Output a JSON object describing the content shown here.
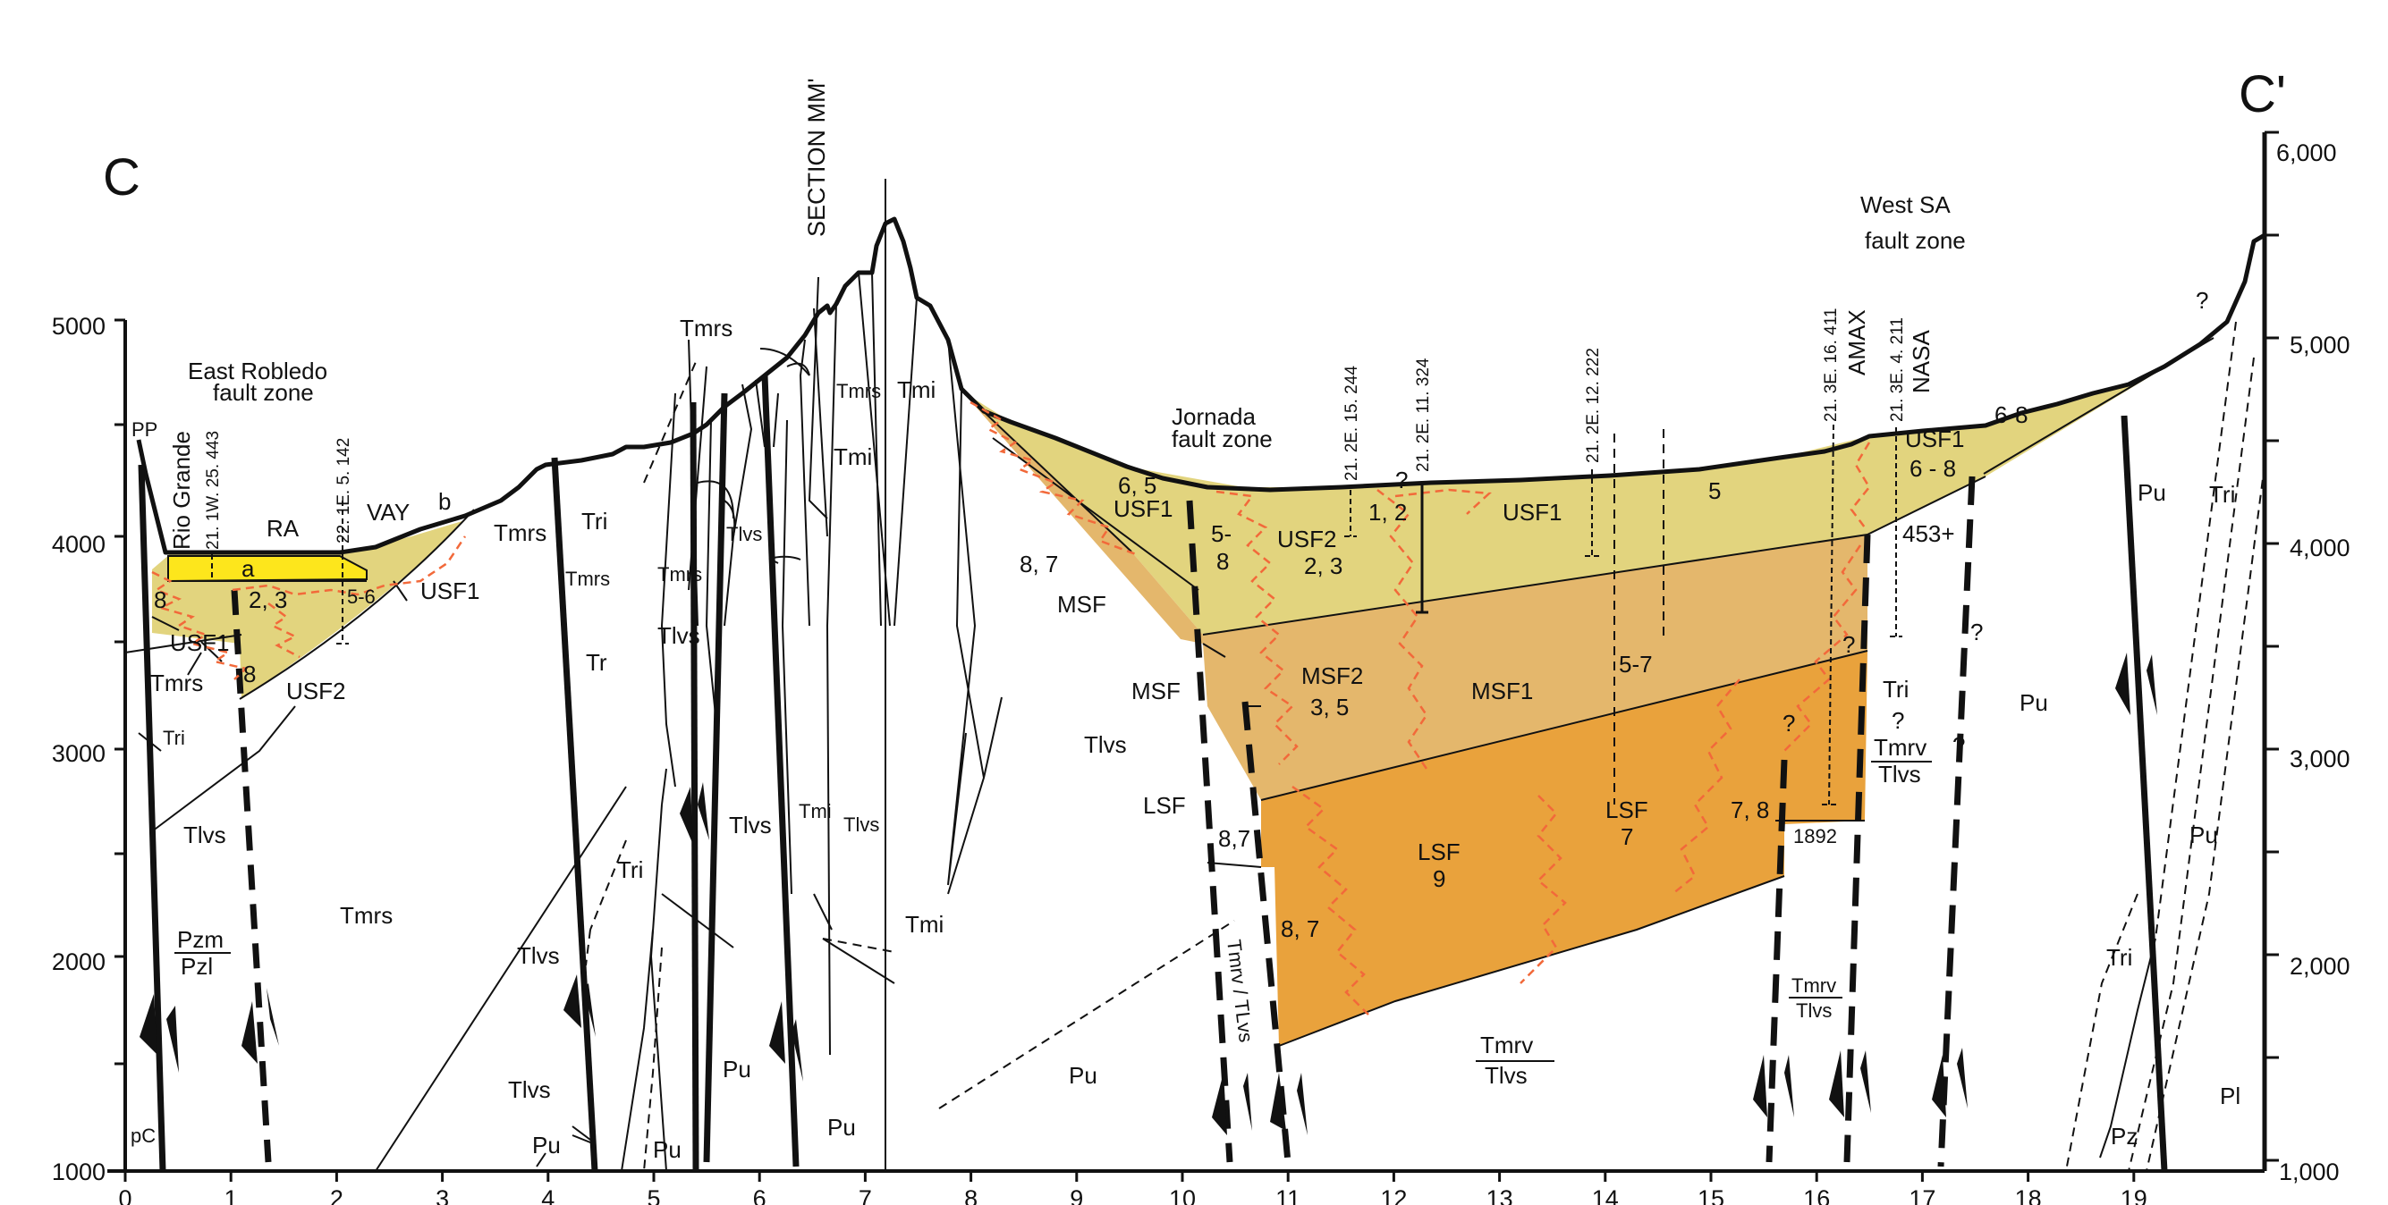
{
  "section": {
    "start_label": "C",
    "end_label": "C'",
    "crossing_section": "SECTION  MM'"
  },
  "axes": {
    "x_ticks": [
      "0",
      "1",
      "2",
      "3",
      "4",
      "5",
      "6",
      "7",
      "8",
      "9",
      "10",
      "11",
      "12",
      "13",
      "14",
      "15",
      "16",
      "17",
      "18",
      "19"
    ],
    "left_y_ticks": [
      "5000",
      "4000",
      "3000",
      "2000",
      "1000"
    ],
    "right_y_ticks": [
      "6,000",
      "5,000",
      "4,000",
      "3,000",
      "2,000",
      "1,000"
    ],
    "elevation_range": [
      1000,
      6000
    ]
  },
  "fault_zones": {
    "east_robledo": [
      "East Robledo",
      "fault zone"
    ],
    "jornada": [
      "Jornada",
      "fault zone"
    ],
    "west_sa": [
      "West SA",
      "fault zone"
    ]
  },
  "wells": [
    {
      "id": "rio-grande",
      "lines": [
        "Rio Grande",
        "21. 1W. 25. 443"
      ]
    },
    {
      "id": "w-22-1e-5-142",
      "lines": [
        "22. 1E. 5. 142"
      ]
    },
    {
      "id": "w-21-2e-15-244",
      "lines": [
        "21. 2E. 15. 244"
      ]
    },
    {
      "id": "w-21-2e-11-324",
      "lines": [
        "21. 2E. 11. 324"
      ]
    },
    {
      "id": "w-21-2e-12-222",
      "lines": [
        "21. 2E. 12. 222"
      ]
    },
    {
      "id": "amax",
      "lines": [
        "21. 3E. 16. 411",
        "AMAX"
      ]
    },
    {
      "id": "nasa",
      "lines": [
        "21. 3E. 4. 211",
        "NASA"
      ]
    }
  ],
  "colors": {
    "usf": "#e2d47e",
    "msf": "#e4b76c",
    "lsf": "#e9a23c",
    "ra": "#fde61c",
    "facies_zigzag": "#f2693a"
  },
  "labels": {
    "PP": "PP",
    "RA": "RA",
    "a": "a",
    "b": "b",
    "VAY": "VAY",
    "USF1": "USF1",
    "USF2": "USF2",
    "MSF": "MSF",
    "MSF1": "MSF1",
    "MSF2": "MSF2",
    "LSF": "LSF",
    "Tmrs": "Tmrs",
    "Tri": "Tri",
    "Tlvs": "Tlvs",
    "Tmi": "Tmi",
    "Tr": "Tr",
    "Pu": "Pu",
    "Pzm": "Pzm",
    "Pzl": "Pzl",
    "Pz": "Pz",
    "Pl": "Pl",
    "pC": "pC",
    "Tmrv": "Tmrv",
    "TmrvTLvs": "Tmrv / TLvs",
    "q": "?",
    "n8": "8",
    "n23": "2, 3",
    "n56": "5-6",
    "n65": "6, 5",
    "n87": "8, 7",
    "n8c7": "8,7",
    "n58": "5-\n8",
    "n12": "1, 2",
    "n5": "5",
    "n68": "6-8",
    "n6_8": "6 - 8",
    "n453": "453+",
    "n35": "3, 5",
    "n57": "5-7",
    "n9": "9",
    "n7": "7",
    "n78": "7, 8",
    "n1892": "1892"
  }
}
